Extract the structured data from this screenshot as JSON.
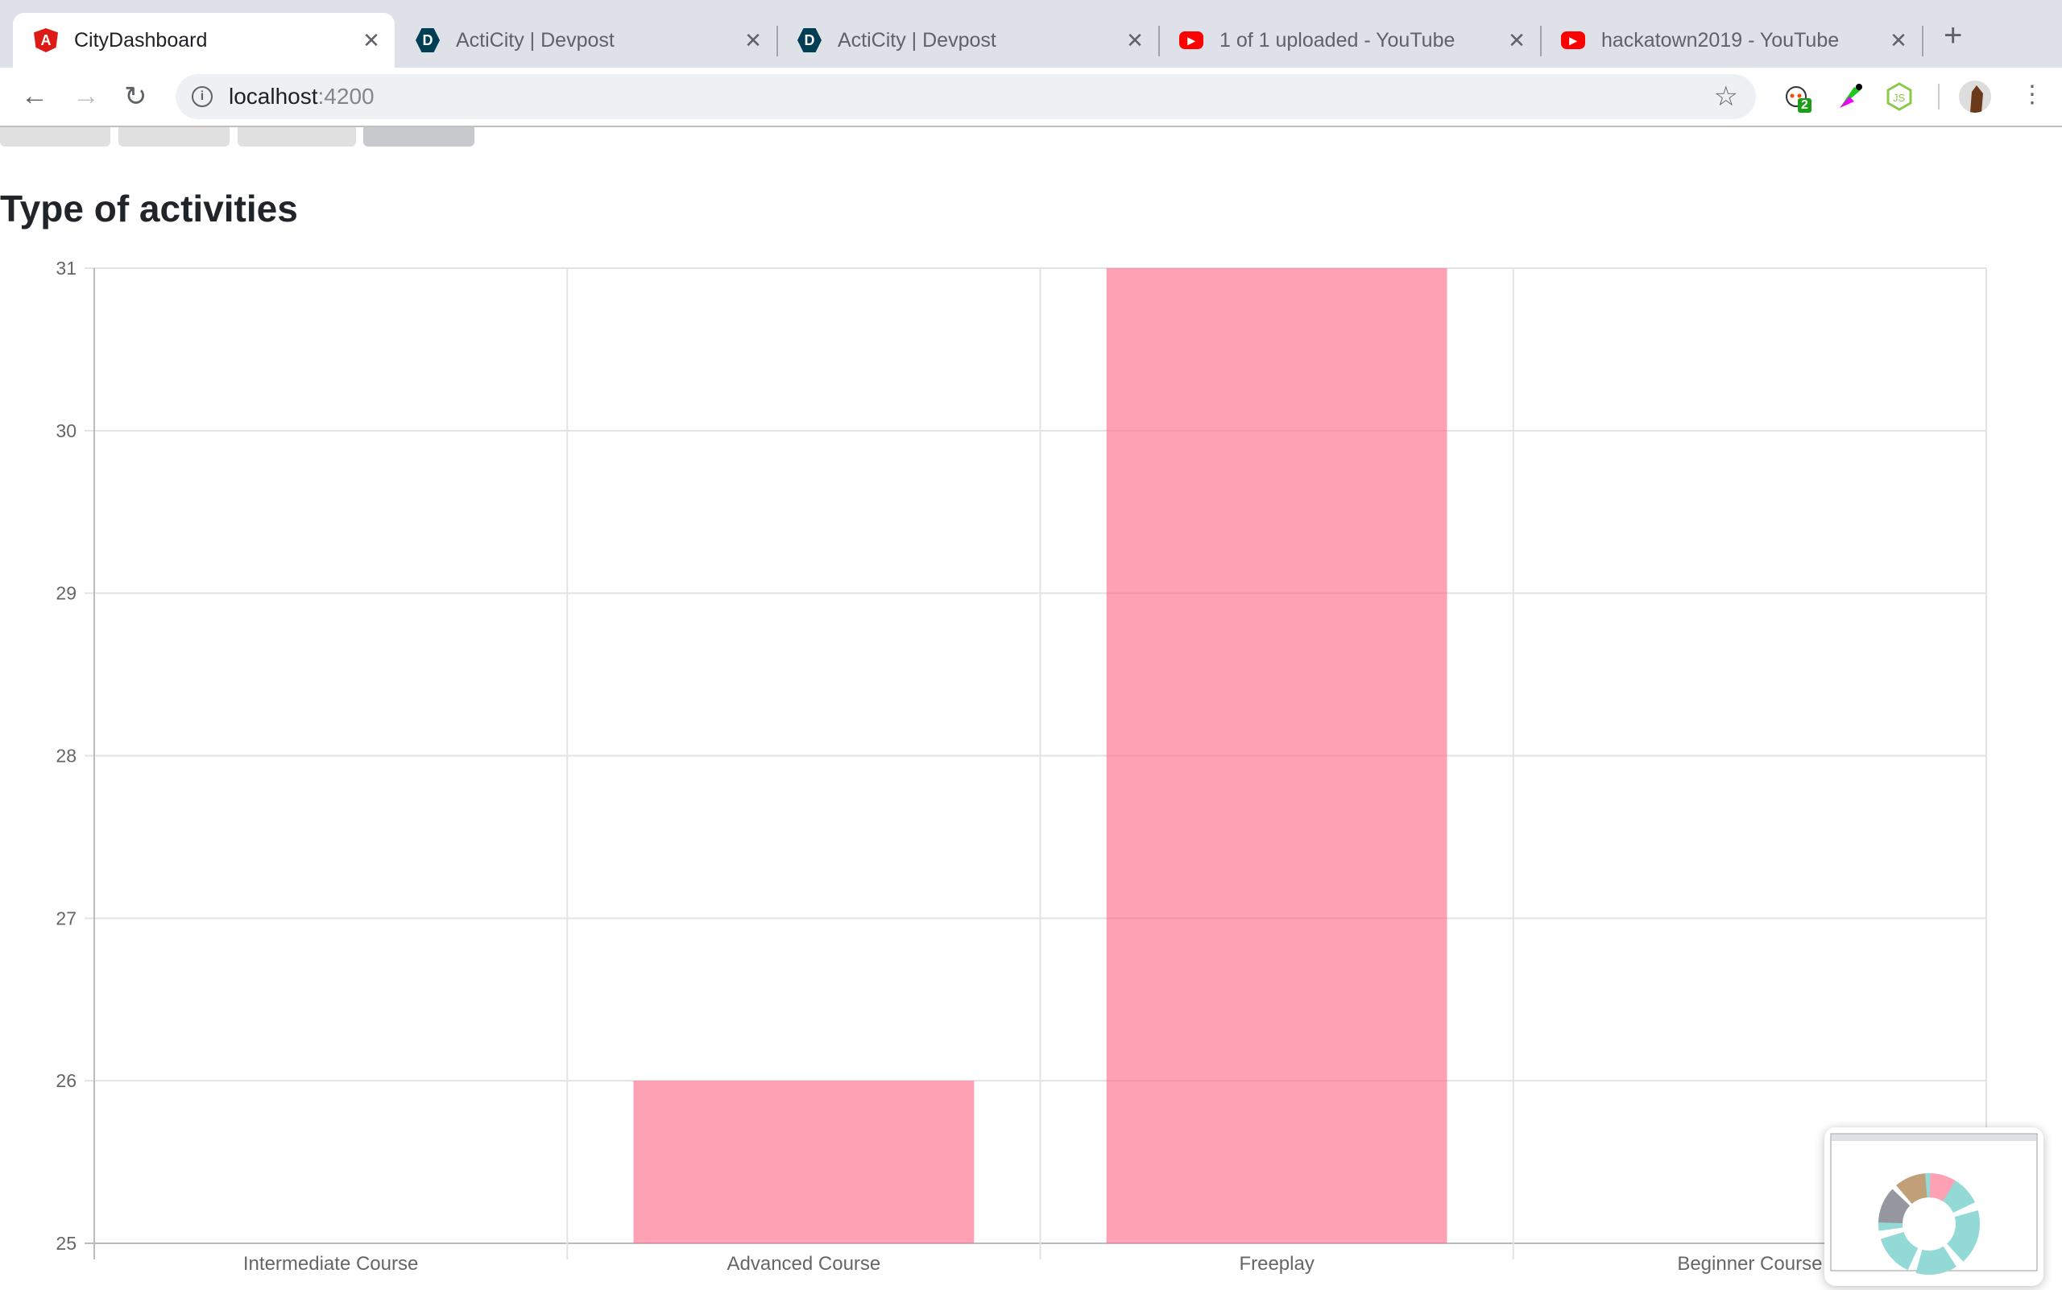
{
  "browser": {
    "tabs": [
      {
        "title": "CityDashboard",
        "icon": "angular-icon",
        "active": true
      },
      {
        "title": "ActiCity | Devpost",
        "icon": "devpost-icon",
        "active": false
      },
      {
        "title": "ActiCity | Devpost",
        "icon": "devpost-icon",
        "active": false
      },
      {
        "title": "1 of 1 uploaded - YouTube",
        "icon": "youtube-icon",
        "active": false
      },
      {
        "title": "hackatown2019 - YouTube",
        "icon": "youtube-icon",
        "active": false
      }
    ],
    "url_host": "localhost",
    "url_port": ":4200",
    "extension_badge": "2"
  },
  "page": {
    "title": "Type of activities"
  },
  "chart_data": {
    "type": "bar",
    "categories": [
      "Intermediate Course",
      "Advanced Course",
      "Freeplay",
      "Beginner Course"
    ],
    "values": [
      25,
      26,
      31,
      25
    ],
    "ylim": [
      25,
      31
    ],
    "yticks": [
      "31",
      "30",
      "29",
      "28",
      "27",
      "26",
      "25"
    ],
    "grid": true,
    "color": "#ff6384",
    "fill_opacity": 0.6
  }
}
